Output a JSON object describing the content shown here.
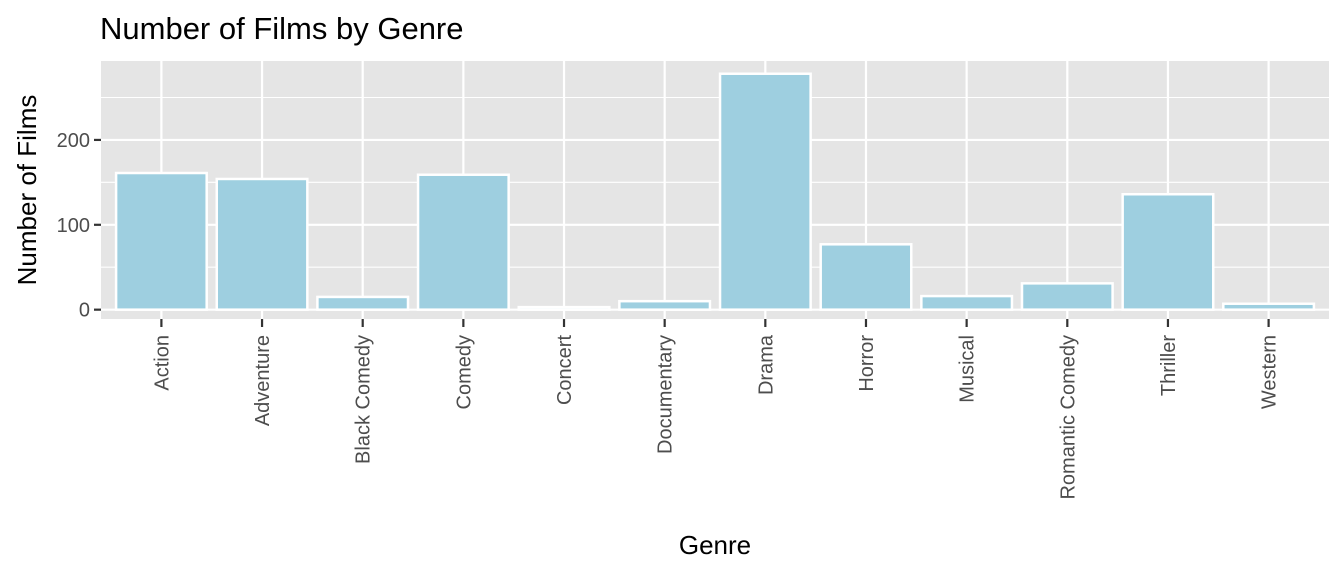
{
  "chart_data": {
    "type": "bar",
    "title": "Number of Films by Genre",
    "xlabel": "Genre",
    "ylabel": "Number of Films",
    "categories": [
      "Action",
      "Adventure",
      "Black Comedy",
      "Comedy",
      "Concert",
      "Documentary",
      "Drama",
      "Horror",
      "Musical",
      "Romantic Comedy",
      "Thriller",
      "Western"
    ],
    "values": [
      161,
      154,
      15,
      159,
      3,
      10,
      278,
      77,
      16,
      31,
      136,
      7
    ],
    "ylim": [
      -11,
      293
    ],
    "yticks": [
      0,
      100,
      200
    ],
    "grid": true,
    "bar_fill": "#9ECFE0",
    "bar_stroke": "#ffffff",
    "panel_bg": "#E5E5E5",
    "grid_color": "#ffffff"
  }
}
